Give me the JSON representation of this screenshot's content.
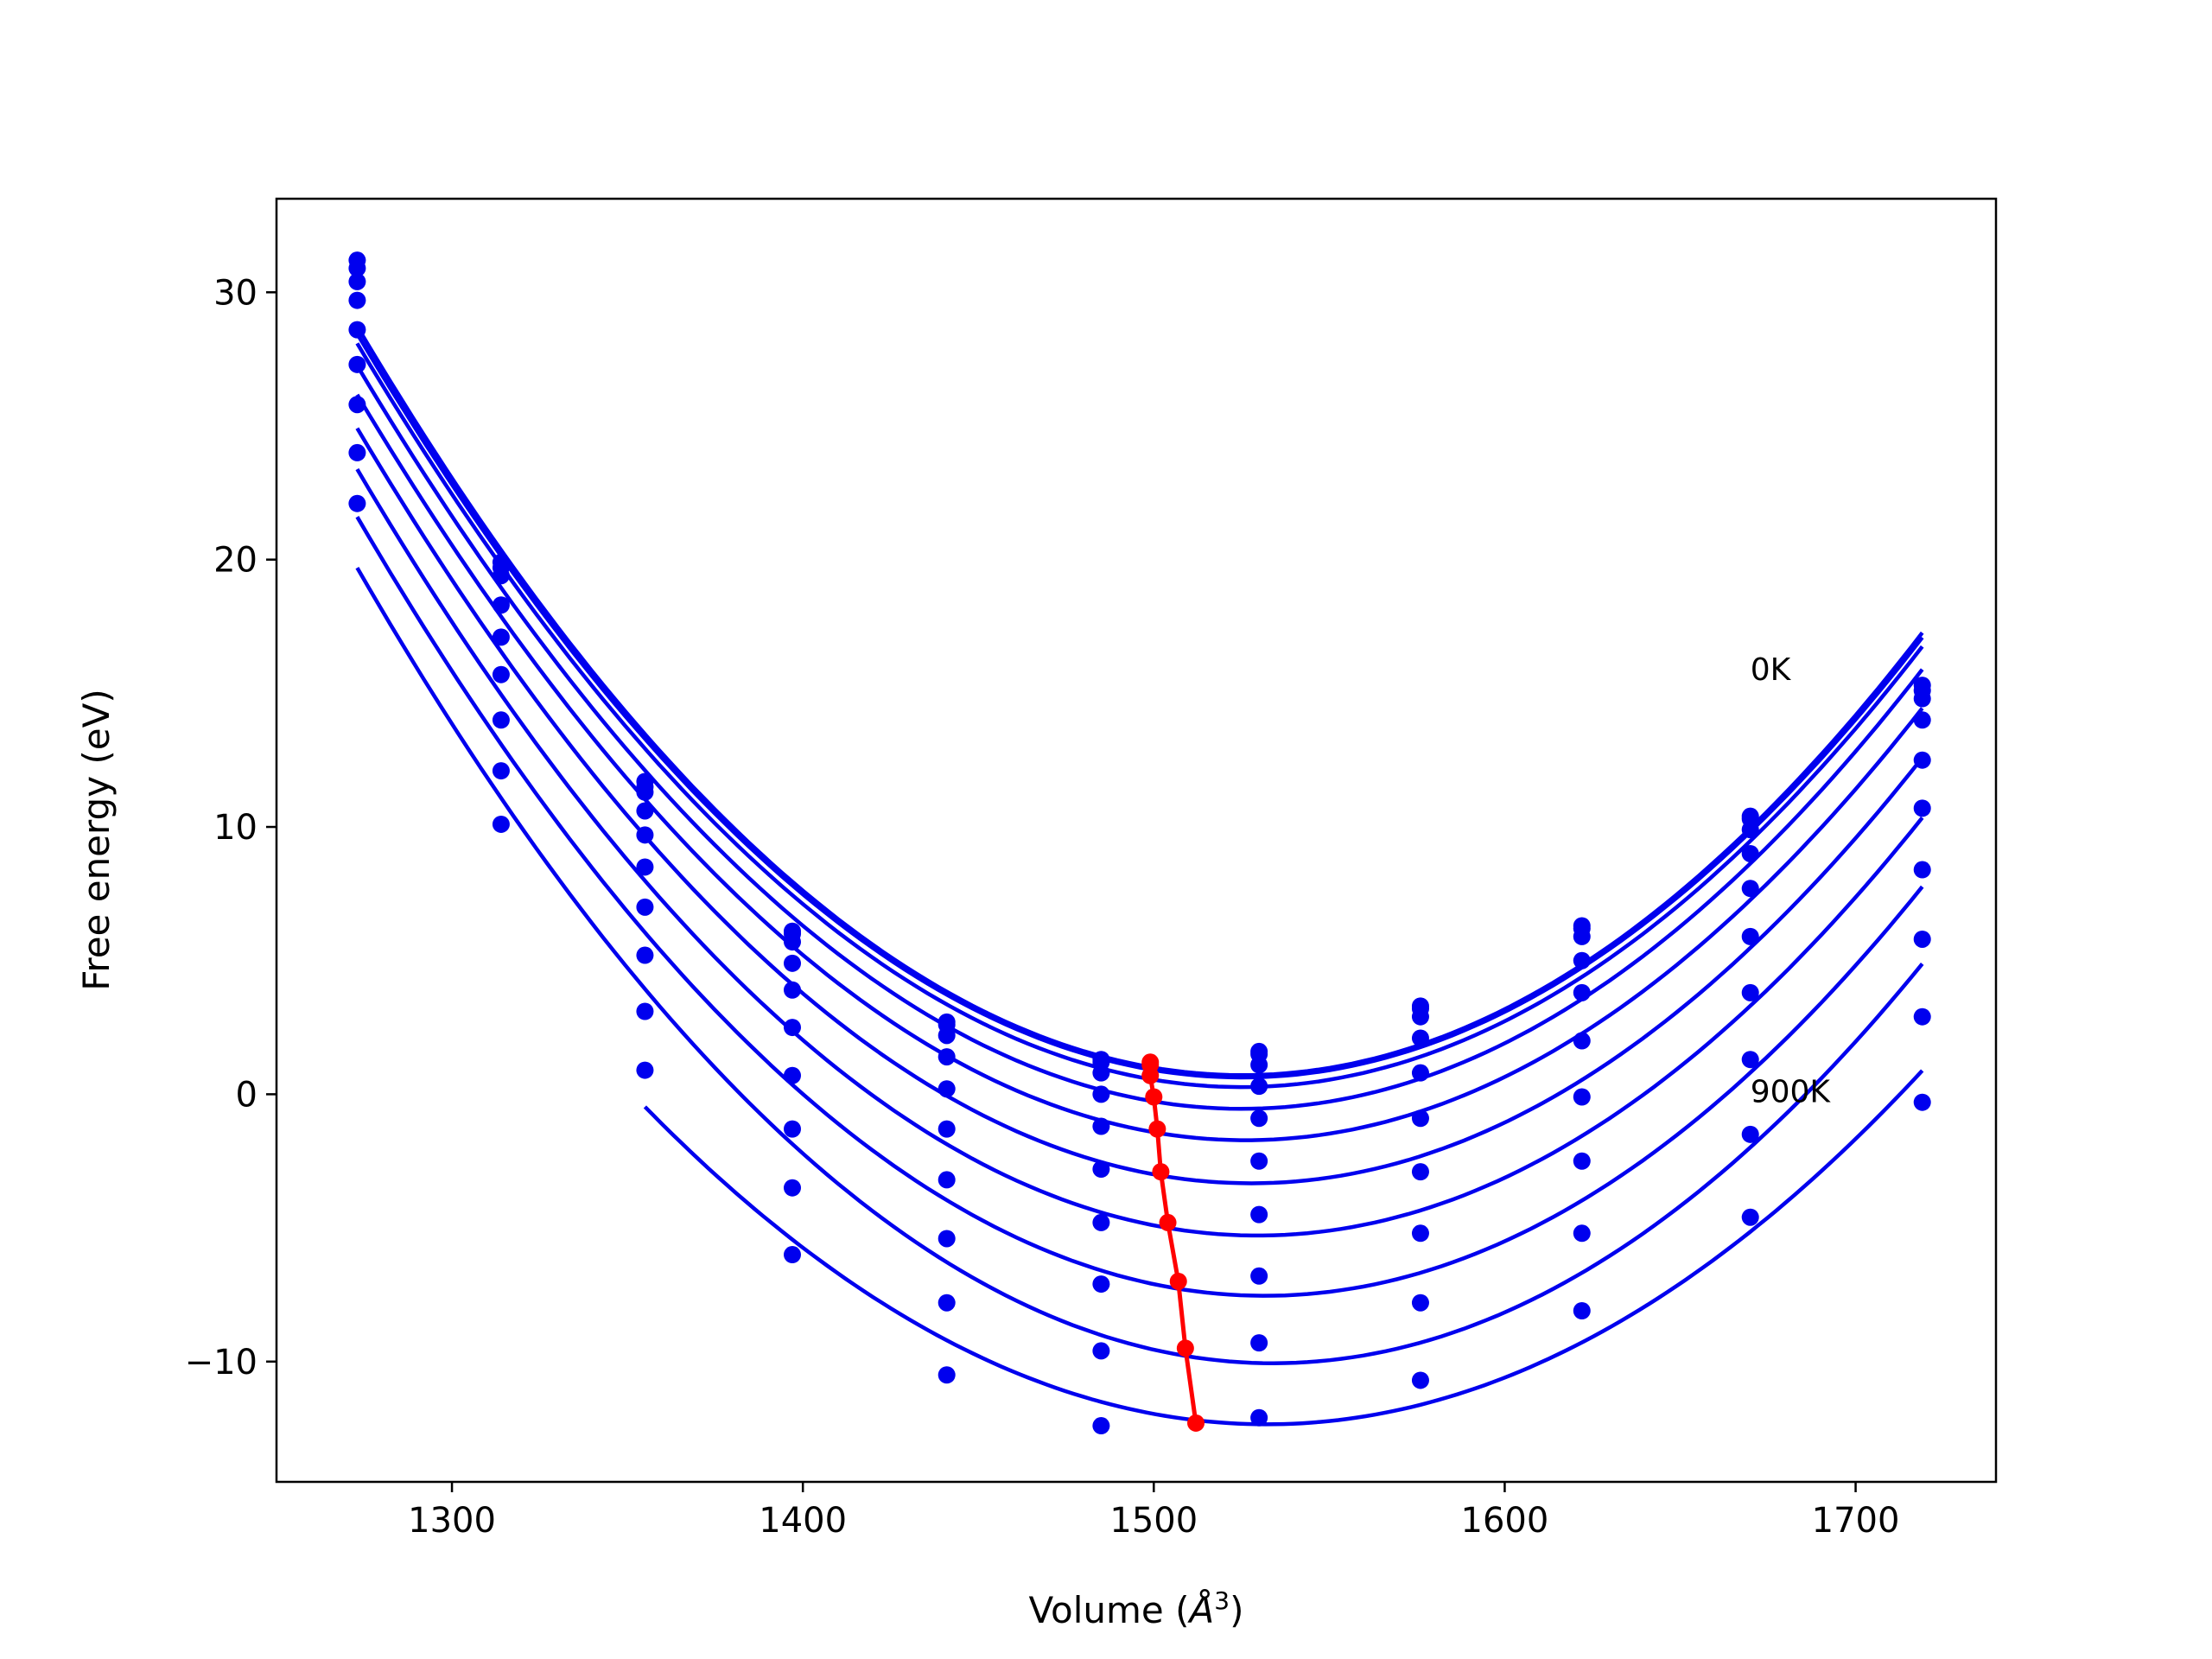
{
  "chart_data": {
    "type": "line",
    "xlabel_text": "Volume (",
    "xlabel_symbol": "Å",
    "xlabel_sup": "3",
    "xlabel_close": ")",
    "ylabel": "Free energy (eV)",
    "xlim": [
      1250,
      1740
    ],
    "ylim": [
      -14.5,
      33.5
    ],
    "xticks": [
      1300,
      1400,
      1500,
      1600,
      1700
    ],
    "yticks": [
      -10,
      0,
      10,
      20,
      30
    ],
    "ytick_labels": [
      "−10",
      "0",
      "10",
      "20",
      "30"
    ],
    "grid": false,
    "legend": "none",
    "annotations": [
      {
        "text": "0K",
        "x": 1670,
        "y": 15.5
      },
      {
        "text": "900K",
        "x": 1670,
        "y": -0.3
      }
    ],
    "colors": {
      "curves": "#0000ee",
      "minimum_path": "#ff0000"
    },
    "x": [
      1273,
      1314,
      1355,
      1397,
      1441,
      1485,
      1530,
      1576,
      1622,
      1670,
      1719
    ],
    "series": [
      {
        "values": [
          31.2,
          19.9,
          11.7,
          6.1,
          2.7,
          1.3,
          1.6,
          3.3,
          6.3,
          10.4,
          15.3
        ],
        "fit_min": [
          1500,
          1.2
        ]
      },
      {
        "values": [
          30.9,
          19.7,
          11.5,
          6.0,
          2.6,
          1.2,
          1.5,
          3.2,
          6.2,
          10.3,
          15.1
        ],
        "fit_min": [
          1500,
          1.1
        ]
      },
      {
        "values": [
          30.4,
          19.4,
          11.3,
          5.7,
          2.2,
          0.8,
          1.1,
          2.9,
          5.9,
          9.9,
          14.8
        ],
        "fit_min": [
          1500,
          0.7
        ]
      },
      {
        "values": [
          29.7,
          18.3,
          10.6,
          4.9,
          1.4,
          -0.0,
          0.3,
          2.1,
          5.0,
          9.0,
          14.0
        ],
        "fit_min": [
          1500,
          -0.1
        ]
      },
      {
        "values": [
          28.6,
          17.1,
          9.7,
          3.9,
          0.2,
          -1.2,
          -0.9,
          0.8,
          3.8,
          7.7,
          12.5
        ],
        "fit_min": [
          1502,
          -1.3
        ]
      },
      {
        "values": [
          27.3,
          15.7,
          8.5,
          2.5,
          -1.3,
          -2.8,
          -2.5,
          -0.9,
          2.0,
          5.9,
          10.7
        ],
        "fit_min": [
          1503,
          -2.9
        ]
      },
      {
        "values": [
          25.8,
          14.0,
          7.0,
          0.7,
          -3.2,
          -4.8,
          -4.5,
          -2.9,
          -0.1,
          3.8,
          8.4
        ],
        "fit_min": [
          1505,
          -4.8
        ]
      },
      {
        "values": [
          24.0,
          12.1,
          5.2,
          -1.3,
          -5.4,
          -7.1,
          -6.8,
          -5.2,
          -2.5,
          1.3,
          5.8
        ],
        "fit_min": [
          1507,
          -7.0
        ]
      },
      {
        "values": [
          22.1,
          10.1,
          3.1,
          -3.5,
          -7.8,
          -9.6,
          -9.3,
          -7.8,
          -5.2,
          -1.5,
          2.9
        ],
        "fit_min": [
          1510,
          -9.5
        ]
      },
      {
        "values": [
          null,
          null,
          0.9,
          -6.0,
          -10.5,
          -12.4,
          -12.1,
          -10.7,
          -8.1,
          -4.6,
          -0.3
        ],
        "fit_min": [
          1512,
          -12.3
        ]
      }
    ],
    "minimum_path": {
      "x": [
        1499,
        1499,
        1499,
        1500,
        1501,
        1502,
        1504,
        1507,
        1509,
        1512
      ],
      "y": [
        1.2,
        1.1,
        0.7,
        -0.1,
        -1.3,
        -2.9,
        -4.8,
        -7.0,
        -9.5,
        -12.3
      ]
    }
  }
}
